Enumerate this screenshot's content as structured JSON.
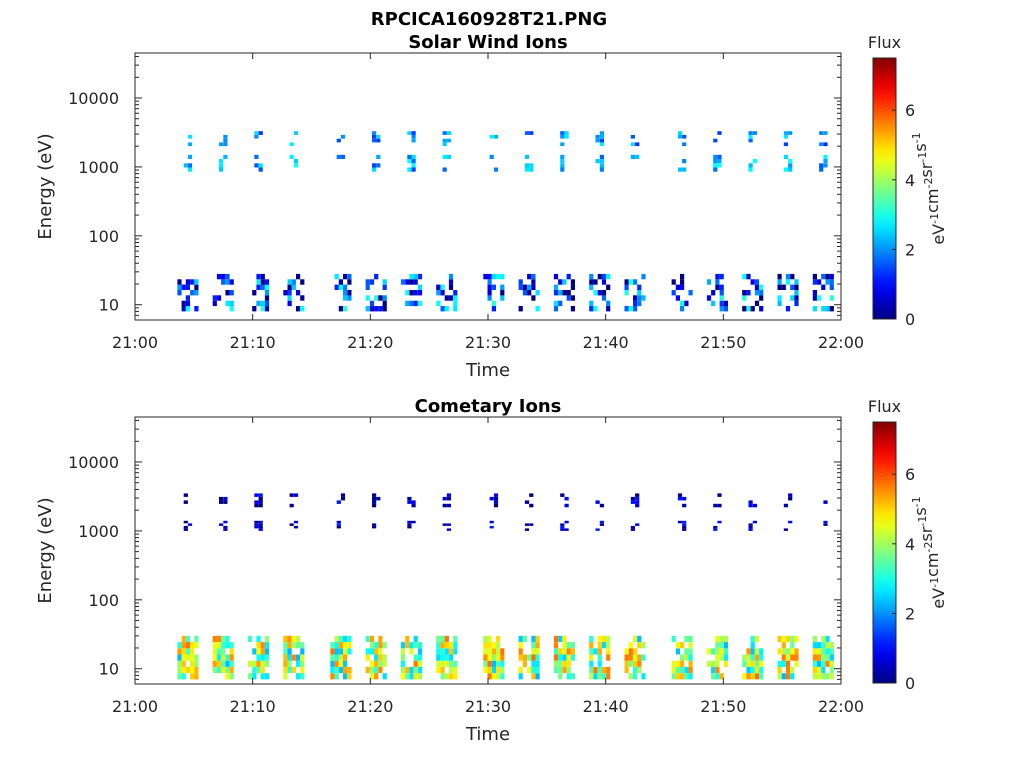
{
  "figure_title": "RPCICA160928T21.PNG",
  "chart_data": [
    {
      "type": "heatmap",
      "title": "Solar Wind Ions",
      "xlabel": "Time",
      "ylabel": "Energy (eV)",
      "yscale": "log",
      "xlim": [
        "21:00",
        "22:00"
      ],
      "ylim": [
        6,
        45000
      ],
      "xticks": [
        "21:00",
        "21:10",
        "21:20",
        "21:30",
        "21:40",
        "21:50",
        "22:00"
      ],
      "yticks": [
        10,
        100,
        1000,
        10000
      ],
      "ytick_labels": [
        "10",
        "100",
        "1000",
        "10000"
      ],
      "colorbar": {
        "title": "Flux",
        "label": "eV-1cm-2sr-1s-1",
        "range": [
          0,
          7.5
        ],
        "ticks": [
          "0",
          "2",
          "4",
          "6"
        ],
        "colormap": "jet"
      },
      "scan_times": [
        "21:04",
        "21:07",
        "21:10",
        "21:13",
        "21:17",
        "21:20",
        "21:23",
        "21:26",
        "21:30",
        "21:33",
        "21:36",
        "21:39",
        "21:42",
        "21:46",
        "21:49",
        "21:52",
        "21:55",
        "21:58"
      ],
      "bands": [
        {
          "energy_ev": [
            2000,
            3300
          ],
          "flux": 2.0
        },
        {
          "energy_ev": [
            850,
            1500
          ],
          "flux": 2.2
        },
        {
          "energy_ev": [
            8,
            28
          ],
          "flux": 1.4
        }
      ],
      "grid": false
    },
    {
      "type": "heatmap",
      "title": "Cometary Ions",
      "xlabel": "Time",
      "ylabel": "Energy (eV)",
      "yscale": "log",
      "xlim": [
        "21:00",
        "22:00"
      ],
      "ylim": [
        6,
        45000
      ],
      "xticks": [
        "21:00",
        "21:10",
        "21:20",
        "21:30",
        "21:40",
        "21:50",
        "22:00"
      ],
      "yticks": [
        10,
        100,
        1000,
        10000
      ],
      "ytick_labels": [
        "10",
        "100",
        "1000",
        "10000"
      ],
      "colorbar": {
        "title": "Flux",
        "label": "eV-1cm-2sr-1s-1",
        "range": [
          0,
          7.5
        ],
        "ticks": [
          "0",
          "2",
          "4",
          "6"
        ],
        "colormap": "jet"
      },
      "scan_times": [
        "21:04",
        "21:07",
        "21:10",
        "21:13",
        "21:17",
        "21:20",
        "21:23",
        "21:26",
        "21:30",
        "21:33",
        "21:36",
        "21:39",
        "21:42",
        "21:46",
        "21:49",
        "21:52",
        "21:55",
        "21:58"
      ],
      "bands": [
        {
          "energy_ev": [
            2200,
            3500
          ],
          "flux": 0.3
        },
        {
          "energy_ev": [
            1000,
            1400
          ],
          "flux": 0.4
        },
        {
          "energy_ev": [
            7,
            30
          ],
          "flux": 4.0
        }
      ],
      "grid": false
    }
  ]
}
